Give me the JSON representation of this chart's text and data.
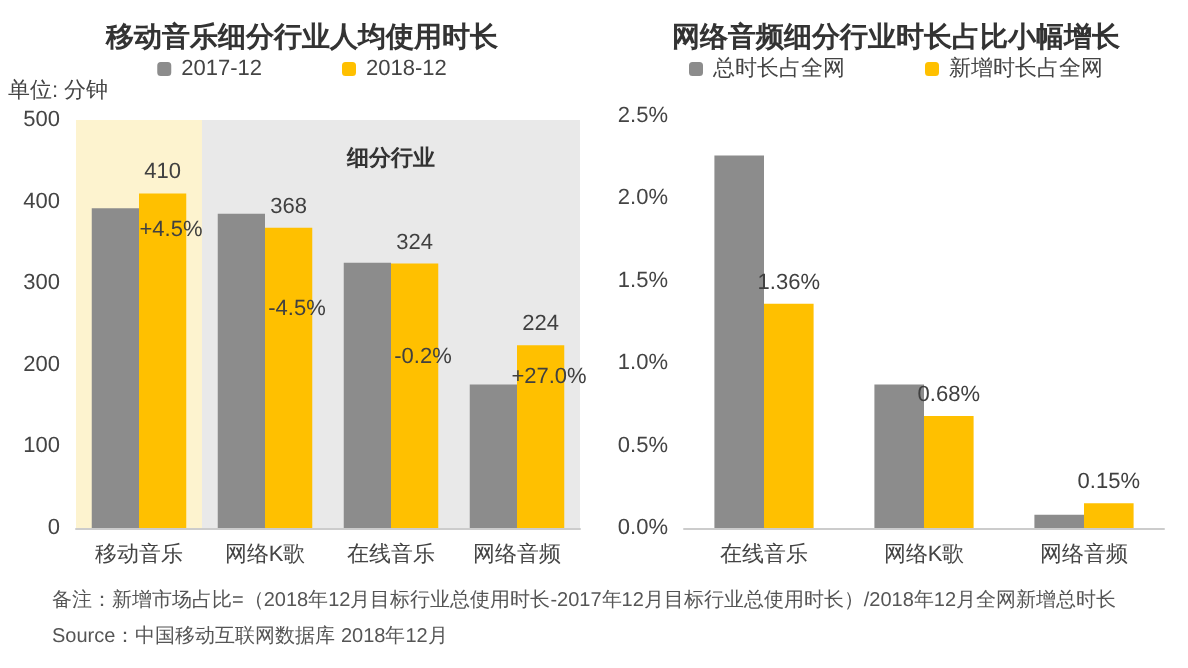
{
  "chart_data": [
    {
      "type": "bar",
      "title": "移动音乐细分行业人均使用时长",
      "ylabel": "单位: 分钟",
      "categories": [
        "移动音乐",
        "网络K歌",
        "在线音乐",
        "网络音频"
      ],
      "series": [
        {
          "name": "2017-12",
          "color": "#8c8c8c",
          "values": [
            392,
            385,
            325,
            176
          ]
        },
        {
          "name": "2018-12",
          "color": "#ffc000",
          "values": [
            410,
            368,
            324,
            224
          ],
          "value_labels": [
            "410",
            "368",
            "324",
            "224"
          ]
        }
      ],
      "ylim": [
        0,
        500
      ],
      "yticks": [
        0,
        100,
        200,
        300,
        400,
        500
      ],
      "grid": false,
      "legend": "top",
      "bands": [
        {
          "axis": "x",
          "from": "移动音乐",
          "to": "移动音乐",
          "color": "#fdf3cf"
        },
        {
          "axis": "x",
          "from": "网络K歌",
          "to": "网络音频",
          "label": "细分行业",
          "color": "#e9e9e9"
        }
      ],
      "annotations": [
        {
          "text": "+4.5%",
          "x": "移动音乐",
          "y": 365
        },
        {
          "text": "-4.5%",
          "x": "网络K歌",
          "y": 268
        },
        {
          "text": "-0.2%",
          "x": "在线音乐",
          "y": 210
        },
        {
          "text": "+27.0%",
          "x": "网络音频",
          "y": 185
        },
        "备注：新增市场占比=（2018年12月目标行业总使用时长-2017年12月目标行业总使用时长）/2018年12月全网新增总时长",
        "Source：中国移动互联网数据库 2018年12月"
      ]
    },
    {
      "type": "bar",
      "title": "网络音频细分行业时长占比小幅增长",
      "categories": [
        "在线音乐",
        "网络K歌",
        "网络音频"
      ],
      "series": [
        {
          "name": "总时长占全网",
          "color": "#8c8c8c",
          "values": [
            2.26,
            0.87,
            0.08
          ]
        },
        {
          "name": "新增时长占全网",
          "color": "#ffc000",
          "values": [
            1.36,
            0.68,
            0.15
          ],
          "value_labels": [
            "1.36%",
            "0.68%",
            "0.15%"
          ]
        }
      ],
      "ylim": [
        0,
        2.5
      ],
      "yticks": [
        {
          "value": 0,
          "label": "0.0%"
        },
        {
          "value": 0.5,
          "label": "0.5%"
        },
        {
          "value": 1,
          "label": "1.0%"
        },
        {
          "value": 1.5,
          "label": "1.5%"
        },
        {
          "value": 2,
          "label": "2.0%"
        },
        {
          "value": 2.5,
          "label": "2.5%"
        }
      ],
      "grid": false,
      "legend": "top"
    }
  ]
}
